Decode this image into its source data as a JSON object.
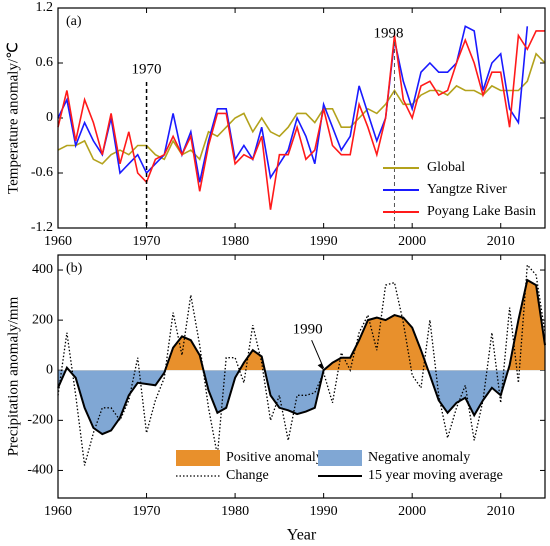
{
  "chart_data": [
    {
      "type": "line",
      "title": "(a)",
      "y_label": "Temperature anomaly/℃",
      "x": [
        1960,
        1961,
        1962,
        1963,
        1964,
        1965,
        1966,
        1967,
        1968,
        1969,
        1970,
        1971,
        1972,
        1973,
        1974,
        1975,
        1976,
        1977,
        1978,
        1979,
        1980,
        1981,
        1982,
        1983,
        1984,
        1985,
        1986,
        1987,
        1988,
        1989,
        1990,
        1991,
        1992,
        1993,
        1994,
        1995,
        1996,
        1997,
        1998,
        1999,
        2000,
        2001,
        2002,
        2003,
        2004,
        2005,
        2006,
        2007,
        2008,
        2009,
        2010,
        2011,
        2012,
        2013,
        2014,
        2015
      ],
      "xlim": [
        1960,
        2015
      ],
      "xticks": [
        1960,
        1970,
        1980,
        1990,
        2000,
        2010
      ],
      "ylim": [
        -1.2,
        1.2
      ],
      "yticks": [
        -1.2,
        -0.6,
        0,
        0.6,
        1.2
      ],
      "legend": "lower right",
      "annotations": [
        {
          "text": "1970",
          "x": 1970
        },
        {
          "text": "1998",
          "x": 1998
        }
      ],
      "series": [
        {
          "name": "Global",
          "color": "#b3a21c",
          "values": [
            -0.35,
            -0.3,
            -0.3,
            -0.25,
            -0.45,
            -0.5,
            -0.4,
            -0.35,
            -0.4,
            -0.3,
            -0.3,
            -0.4,
            -0.45,
            -0.25,
            -0.4,
            -0.35,
            -0.45,
            -0.15,
            -0.2,
            -0.1,
            0,
            0.05,
            -0.15,
            0,
            -0.15,
            -0.2,
            -0.1,
            0.05,
            0.05,
            -0.05,
            0.1,
            0.1,
            -0.1,
            -0.1,
            0,
            0.1,
            0.05,
            0.15,
            0.3,
            0.15,
            0.15,
            0.25,
            0.3,
            0.3,
            0.25,
            0.35,
            0.3,
            0.3,
            0.25,
            0.35,
            0.3,
            0.3,
            0.3,
            0.4,
            0.7,
            0.6
          ]
        },
        {
          "name": "Yangtze River",
          "color": "#1a1aff",
          "values": [
            0,
            0.2,
            -0.3,
            -0.05,
            -0.25,
            -0.4,
            0,
            -0.6,
            -0.5,
            -0.4,
            -0.6,
            -0.5,
            -0.4,
            0.05,
            -0.4,
            -0.15,
            -0.7,
            -0.25,
            0.1,
            0.1,
            -0.45,
            -0.3,
            -0.45,
            -0.1,
            -0.65,
            -0.5,
            -0.35,
            0,
            -0.2,
            -0.5,
            0.15,
            -0.1,
            -0.35,
            -0.2,
            0.35,
            0.05,
            -0.25,
            0,
            0.85,
            0.4,
            0.1,
            0.5,
            0.6,
            0.5,
            0.5,
            0.6,
            1.0,
            0.95,
            0.3,
            0.6,
            0.7,
            0.1,
            -0.05,
            1.0,
            null,
            null
          ]
        },
        {
          "name": "Poyang Lake Basin",
          "color": "#ff1a1a",
          "values": [
            -0.1,
            0.3,
            -0.25,
            0.2,
            -0.05,
            -0.4,
            0.05,
            -0.5,
            -0.15,
            -0.6,
            -0.7,
            -0.45,
            -0.4,
            -0.2,
            -0.4,
            -0.2,
            -0.8,
            -0.3,
            0.05,
            0.05,
            -0.5,
            -0.4,
            -0.45,
            -0.2,
            -1.0,
            -0.4,
            -0.4,
            -0.1,
            -0.45,
            -0.35,
            0.1,
            -0.3,
            -0.4,
            -0.4,
            0.15,
            -0.1,
            -0.4,
            0,
            0.9,
            0.2,
            0,
            0.35,
            0.4,
            0.25,
            0.3,
            0.6,
            0.85,
            0.6,
            0.25,
            0.5,
            0.5,
            -0.1,
            0.9,
            0.75,
            0.95,
            0.95
          ]
        }
      ]
    },
    {
      "type": "area",
      "title": "(b)",
      "y_label": "Precipitation anomaly/mm",
      "x_label": "Year",
      "x": [
        1960,
        1961,
        1962,
        1963,
        1964,
        1965,
        1966,
        1967,
        1968,
        1969,
        1970,
        1971,
        1972,
        1973,
        1974,
        1975,
        1976,
        1977,
        1978,
        1979,
        1980,
        1981,
        1982,
        1983,
        1984,
        1985,
        1986,
        1987,
        1988,
        1989,
        1990,
        1991,
        1992,
        1993,
        1994,
        1995,
        1996,
        1997,
        1998,
        1999,
        2000,
        2001,
        2002,
        2003,
        2004,
        2005,
        2006,
        2007,
        2008,
        2009,
        2010,
        2011,
        2012,
        2013,
        2014,
        2015
      ],
      "xlim": [
        1960,
        2015
      ],
      "xticks": [
        1960,
        1970,
        1980,
        1990,
        2000,
        2010
      ],
      "ylim": [
        -510,
        460
      ],
      "yticks": [
        -400,
        -200,
        0,
        200,
        400
      ],
      "annotations": [
        {
          "text": "1990",
          "x": 1990,
          "y": 0
        }
      ],
      "fills": [
        {
          "name": "Positive anomaly",
          "color": "#e8902c"
        },
        {
          "name": "Negative anomaly",
          "color": "#80a7d4"
        }
      ],
      "series": [
        {
          "name": "Change",
          "color": "#000000",
          "style": "dotted",
          "values": [
            -100,
            150,
            -100,
            -380,
            -250,
            -150,
            -150,
            -200,
            -120,
            50,
            -250,
            -120,
            -30,
            230,
            60,
            300,
            100,
            -150,
            -340,
            50,
            50,
            -50,
            180,
            30,
            -200,
            -100,
            -280,
            -100,
            -100,
            -90,
            -10,
            -130,
            70,
            0,
            150,
            220,
            80,
            340,
            350,
            190,
            -20,
            -70,
            200,
            -100,
            -270,
            -150,
            -60,
            -280,
            -120,
            150,
            -130,
            250,
            -50,
            420,
            380,
            150
          ]
        },
        {
          "name": "15 year  moving average",
          "color": "#000000",
          "style": "solid",
          "values": [
            -70,
            10,
            -30,
            -150,
            -230,
            -255,
            -240,
            -190,
            -100,
            -50,
            -55,
            -60,
            -10,
            90,
            135,
            120,
            60,
            -80,
            -170,
            -150,
            -30,
            30,
            80,
            55,
            -100,
            -150,
            -160,
            -175,
            -165,
            -150,
            0,
            30,
            50,
            50,
            120,
            200,
            210,
            200,
            220,
            210,
            170,
            80,
            -20,
            -120,
            -170,
            -130,
            -110,
            -180,
            -120,
            -70,
            -100,
            20,
            200,
            360,
            340,
            100
          ]
        }
      ]
    }
  ]
}
